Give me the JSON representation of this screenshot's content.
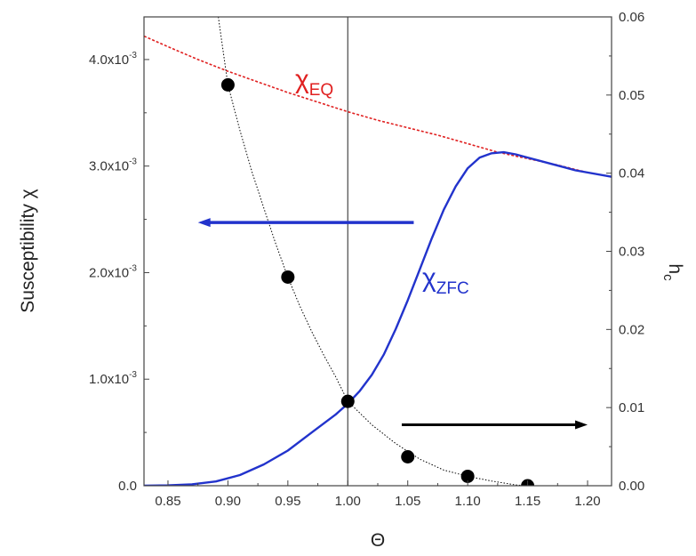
{
  "chart_data": {
    "type": "line",
    "xlabel": "Θ",
    "ylabel": "Susceptibility χ",
    "y2label": "h",
    "y2label_sub": "c",
    "xlim": [
      0.83,
      1.22
    ],
    "ylim": [
      0,
      0.0044
    ],
    "y2lim": [
      0,
      0.06
    ],
    "x_ticks": [
      "0.85",
      "0.90",
      "0.95",
      "1.00",
      "1.05",
      "1.10",
      "1.15",
      "1.20"
    ],
    "y_ticks": [
      {
        "base": "0.0",
        "exp": ""
      },
      {
        "base": "1.0x10",
        "exp": "-3"
      },
      {
        "base": "2.0x10",
        "exp": "-3"
      },
      {
        "base": "3.0x10",
        "exp": "-3"
      },
      {
        "base": "4.0x10",
        "exp": "-3"
      }
    ],
    "y2_ticks": [
      "0.00",
      "0.01",
      "0.02",
      "0.03",
      "0.04",
      "0.05",
      "0.06"
    ],
    "grid": false,
    "vertical_line_x": 1.0,
    "colors": {
      "eq": "#e02020",
      "zfc": "#2233cc",
      "arrow_left": "#2233cc",
      "arrow_right": "#000000",
      "points": "#000000",
      "axes": "#444444"
    },
    "series": [
      {
        "name": "χEQ",
        "label_main": "χ",
        "label_sub": "EQ",
        "axis": "left",
        "style": "dashed",
        "x": [
          0.83,
          0.85,
          0.875,
          0.9,
          0.925,
          0.95,
          0.975,
          1.0,
          1.025,
          1.05,
          1.075,
          1.1,
          1.125,
          1.15,
          1.175,
          1.2,
          1.22
        ],
        "y": [
          0.00422,
          0.00412,
          0.004,
          0.00389,
          0.00379,
          0.00369,
          0.0036,
          0.00351,
          0.00343,
          0.00336,
          0.00329,
          0.00321,
          0.00313,
          0.00307,
          0.00301,
          0.00294,
          0.0029
        ]
      },
      {
        "name": "χZFC",
        "label_main": "χ",
        "label_sub": "ZFC",
        "axis": "left",
        "style": "solid",
        "x": [
          0.83,
          0.85,
          0.87,
          0.89,
          0.91,
          0.93,
          0.95,
          0.97,
          0.99,
          1.0,
          1.01,
          1.02,
          1.03,
          1.04,
          1.05,
          1.06,
          1.07,
          1.08,
          1.09,
          1.1,
          1.11,
          1.12,
          1.13,
          1.14,
          1.15,
          1.17,
          1.19,
          1.22
        ],
        "y": [
          0.0,
          3e-06,
          1.3e-05,
          4e-05,
          0.0001,
          0.0002,
          0.00033,
          0.0005,
          0.00067,
          0.00077,
          0.00089,
          0.00104,
          0.00123,
          0.00147,
          0.00174,
          0.00203,
          0.00232,
          0.00259,
          0.00281,
          0.00298,
          0.00308,
          0.00312,
          0.00313,
          0.00311,
          0.00308,
          0.00302,
          0.00296,
          0.0029
        ]
      },
      {
        "name": "h_c",
        "axis": "right",
        "style": "dotted-with-markers",
        "points_x": [
          0.9,
          0.95,
          1.0,
          1.05,
          1.1,
          1.15
        ],
        "points_y": [
          0.0513,
          0.0267,
          0.0108,
          0.0037,
          0.0012,
          0.0
        ],
        "curve_x": [
          0.892,
          0.9,
          0.91,
          0.92,
          0.93,
          0.94,
          0.95,
          0.96,
          0.97,
          0.98,
          0.99,
          1.0,
          1.02,
          1.04,
          1.06,
          1.08,
          1.1,
          1.12,
          1.14,
          1.15
        ],
        "curve_y": [
          0.06,
          0.0513,
          0.0455,
          0.0402,
          0.0355,
          0.0309,
          0.0267,
          0.023,
          0.0197,
          0.0167,
          0.0139,
          0.0108,
          0.0078,
          0.0054,
          0.0034,
          0.002,
          0.0012,
          0.0006,
          0.0001,
          0.0
        ]
      }
    ],
    "arrows": [
      {
        "axis": "left",
        "direction": "left",
        "x_from": 1.055,
        "x_to": 0.875,
        "y": 0.00247
      },
      {
        "axis": "right",
        "direction": "right",
        "x_from": 1.045,
        "x_to": 1.2,
        "y": 0.0078
      }
    ]
  }
}
